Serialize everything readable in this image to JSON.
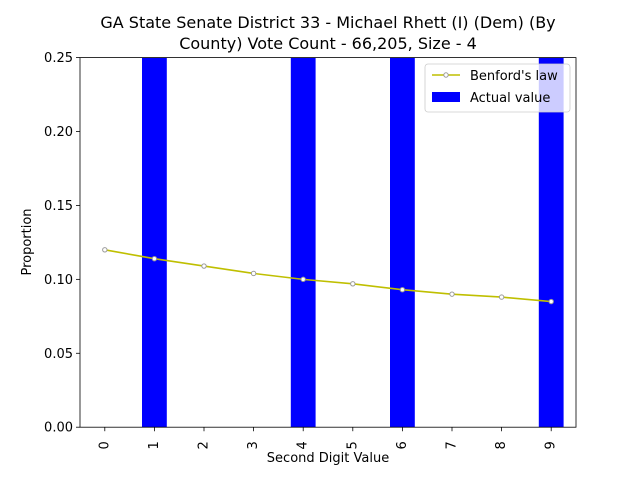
{
  "chart_data": {
    "type": "bar",
    "title": "GA State Senate District 33 - Michael Rhett (I) (Dem) (By County) Vote Count - 66,205, Size - 4",
    "title_lines": [
      "GA State Senate District 33 - Michael Rhett (I) (Dem) (By",
      "County) Vote Count - 66,205, Size - 4"
    ],
    "xlabel": "Second Digit Value",
    "ylabel": "Proportion",
    "categories": [
      "0",
      "1",
      "2",
      "3",
      "4",
      "5",
      "6",
      "7",
      "8",
      "9"
    ],
    "xlim": [
      -0.5,
      9.5
    ],
    "ylim": [
      0,
      0.25
    ],
    "y_ticks": [
      "0.00",
      "0.05",
      "0.10",
      "0.15",
      "0.20",
      "0.25"
    ],
    "grid": false,
    "legend_position": "top-right",
    "series": [
      {
        "name": "Benford's law",
        "kind": "line",
        "color": "#bfbf00",
        "marker_color": "#b0b0b0",
        "values": [
          0.12,
          0.114,
          0.109,
          0.104,
          0.1,
          0.097,
          0.093,
          0.09,
          0.088,
          0.085
        ]
      },
      {
        "name": "Actual value",
        "kind": "bar",
        "color": "#0000ff",
        "values": [
          0,
          0.25,
          0,
          0,
          0.25,
          0,
          0.25,
          0,
          0,
          0.25
        ]
      }
    ]
  }
}
